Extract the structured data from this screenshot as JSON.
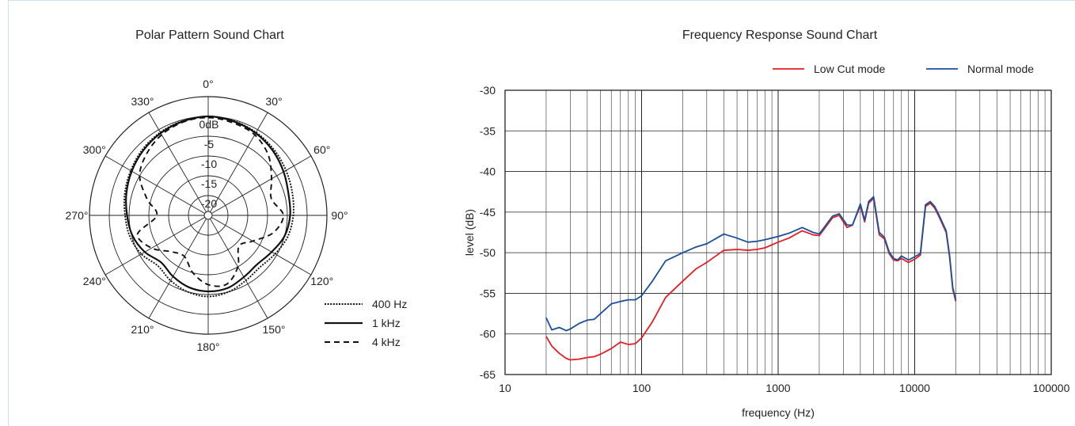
{
  "chart_data": [
    {
      "type": "polar",
      "title": "Polar Pattern Sound Chart",
      "angle_labels": [
        "0°",
        "30°",
        "60°",
        "90°",
        "120°",
        "150°",
        "180°",
        "210°",
        "240°",
        "270°",
        "300°",
        "330°"
      ],
      "radial_labels": [
        "0dB",
        "-5",
        "-10",
        "-15",
        "-20"
      ],
      "rlim": [
        -25,
        0
      ],
      "series": [
        {
          "name": "400 Hz",
          "style": "dotted",
          "angles": [
            0,
            15,
            30,
            45,
            60,
            75,
            90,
            105,
            120,
            135,
            150,
            165,
            180,
            195,
            210,
            225,
            240,
            255,
            270,
            285,
            300,
            315,
            330,
            345
          ],
          "values": [
            0,
            -0.3,
            -0.8,
            -1.5,
            -2.3,
            -3.0,
            -3.5,
            -4.2,
            -5.5,
            -6.5,
            -6.0,
            -5.0,
            -4.5,
            -5.0,
            -6.0,
            -7.0,
            -5.5,
            -4.5,
            -4.0,
            -3.2,
            -2.4,
            -1.5,
            -0.8,
            -0.3
          ]
        },
        {
          "name": "1 kHz",
          "style": "solid",
          "angles": [
            0,
            15,
            30,
            45,
            60,
            75,
            90,
            105,
            120,
            135,
            150,
            165,
            180,
            195,
            210,
            225,
            240,
            255,
            270,
            285,
            300,
            315,
            330,
            345
          ],
          "values": [
            0,
            -0.4,
            -1.0,
            -1.9,
            -3.0,
            -4.0,
            -4.3,
            -5.0,
            -6.5,
            -7.5,
            -7.0,
            -6.0,
            -5.8,
            -6.2,
            -7.2,
            -8.2,
            -6.5,
            -5.2,
            -4.5,
            -3.6,
            -2.7,
            -1.8,
            -1.0,
            -0.4
          ]
        },
        {
          "name": "4 kHz",
          "style": "dashed",
          "angles": [
            0,
            15,
            30,
            45,
            60,
            75,
            90,
            105,
            120,
            135,
            150,
            165,
            180,
            195,
            210,
            225,
            240,
            255,
            270,
            285,
            300,
            315,
            330,
            345
          ],
          "values": [
            -0.3,
            -0.8,
            -1.5,
            -3.5,
            -6.5,
            -8.5,
            -6.0,
            -8.0,
            -12.0,
            -14.0,
            -10.0,
            -7.0,
            -7.5,
            -10.0,
            -13.0,
            -12.0,
            -8.5,
            -6.5,
            -12.0,
            -9.0,
            -5.0,
            -3.0,
            -1.5,
            -0.6
          ]
        }
      ],
      "legend": [
        "400 Hz",
        "1 kHz",
        "4 kHz"
      ],
      "legend_position": "bottom-right"
    },
    {
      "type": "line",
      "title": "Frequency Response Sound Chart",
      "xlabel": "frequency (Hz)",
      "ylabel": "level (dB)",
      "xscale": "log",
      "xlim": [
        10,
        100000
      ],
      "ylim": [
        -65,
        -30
      ],
      "xticks": [
        10,
        100,
        1000,
        10000,
        100000
      ],
      "xtick_labels": [
        "10",
        "100",
        "1000",
        "10000",
        "100000"
      ],
      "yticks": [
        -65,
        -60,
        -55,
        -50,
        -45,
        -40,
        -35,
        -30
      ],
      "ytick_labels": [
        "-65",
        "-60",
        "-55",
        "-50",
        "-45",
        "-40",
        "-35",
        "-30"
      ],
      "grid": true,
      "legend_position": "top-right",
      "series": [
        {
          "name": "Low Cut mode",
          "color": "#e31e24",
          "x": [
            20,
            22,
            25,
            28,
            30,
            35,
            40,
            45,
            50,
            60,
            70,
            80,
            90,
            100,
            120,
            150,
            200,
            250,
            300,
            400,
            500,
            600,
            700,
            800,
            1000,
            1200,
            1500,
            1800,
            2000,
            2500,
            2800,
            3200,
            3500,
            4000,
            4300,
            4600,
            5000,
            5500,
            6000,
            6500,
            7000,
            7500,
            8000,
            9000,
            10000,
            11000,
            12000,
            13000,
            14000,
            15000,
            17000,
            18000,
            19000,
            20000
          ],
          "y": [
            -60.3,
            -61.5,
            -62.4,
            -63.0,
            -63.2,
            -63.1,
            -62.9,
            -62.8,
            -62.5,
            -61.8,
            -61.0,
            -61.3,
            -61.2,
            -60.5,
            -58.5,
            -55.5,
            -53.5,
            -52.0,
            -51.2,
            -49.7,
            -49.6,
            -49.7,
            -49.6,
            -49.4,
            -48.7,
            -48.2,
            -47.3,
            -47.8,
            -47.9,
            -45.7,
            -45.4,
            -46.9,
            -46.6,
            -44.2,
            -46.2,
            -43.9,
            -43.3,
            -47.8,
            -48.3,
            -50.1,
            -50.9,
            -51.0,
            -50.7,
            -51.2,
            -50.8,
            -50.3,
            -44.3,
            -43.9,
            -44.5,
            -45.5,
            -47.5,
            -50.5,
            -54.5,
            -56.0
          ]
        },
        {
          "name": "Normal mode",
          "color": "#1a4f9c",
          "x": [
            20,
            22,
            25,
            28,
            30,
            35,
            40,
            45,
            50,
            60,
            70,
            80,
            90,
            100,
            120,
            150,
            200,
            250,
            300,
            400,
            500,
            600,
            700,
            800,
            1000,
            1200,
            1500,
            1800,
            2000,
            2500,
            2800,
            3200,
            3500,
            4000,
            4300,
            4600,
            5000,
            5500,
            6000,
            6500,
            7000,
            7500,
            8000,
            9000,
            10000,
            11000,
            12000,
            13000,
            14000,
            15000,
            17000,
            18000,
            19000,
            20000
          ],
          "y": [
            -58.0,
            -59.5,
            -59.2,
            -59.6,
            -59.4,
            -58.7,
            -58.3,
            -58.2,
            -57.5,
            -56.3,
            -56.0,
            -55.8,
            -55.8,
            -55.3,
            -53.5,
            -51.0,
            -50.0,
            -49.3,
            -48.9,
            -47.7,
            -48.2,
            -48.7,
            -48.6,
            -48.4,
            -48.0,
            -47.6,
            -46.9,
            -47.5,
            -47.7,
            -45.5,
            -45.2,
            -46.6,
            -46.6,
            -44.0,
            -46.0,
            -43.7,
            -43.1,
            -47.5,
            -48.1,
            -49.9,
            -50.7,
            -50.9,
            -50.4,
            -50.9,
            -50.5,
            -50.1,
            -44.1,
            -43.7,
            -44.3,
            -45.3,
            -47.3,
            -50.3,
            -54.3,
            -55.8
          ]
        }
      ]
    }
  ]
}
